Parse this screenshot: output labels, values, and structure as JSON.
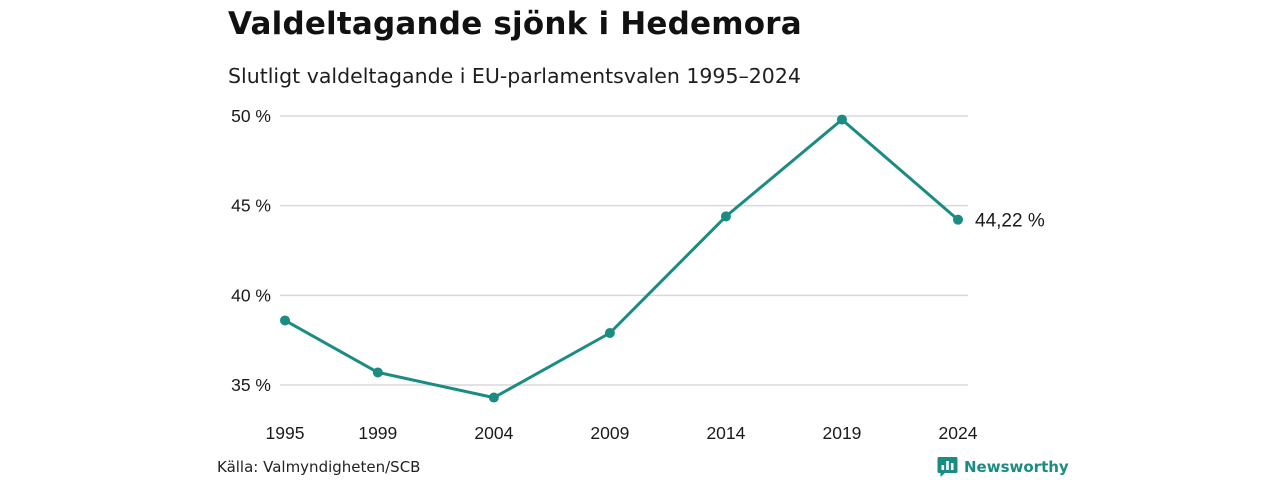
{
  "title": "Valdeltagande sjönk i Hedemora",
  "subtitle": "Slutligt valdeltagande i EU-parlamentsvalen 1995–2024",
  "source": "Källa: Valmyndigheten/SCB",
  "brand": {
    "name": "Newsworthy",
    "color": "#1a8c82",
    "icon": "newsworthy-logo-icon"
  },
  "colors": {
    "line": "#1a8c82",
    "grid": "#d9d9d9"
  },
  "chart_data": {
    "type": "line",
    "title": "Valdeltagande sjönk i Hedemora",
    "subtitle": "Slutligt valdeltagande i EU-parlamentsvalen 1995–2024",
    "xlabel": "",
    "ylabel": "",
    "x": [
      1995,
      1999,
      2004,
      2009,
      2014,
      2019,
      2024
    ],
    "x_tick_labels": [
      "1995",
      "1999",
      "2004",
      "2009",
      "2014",
      "2019",
      "2024"
    ],
    "series": [
      {
        "values": [
          38.6,
          35.7,
          34.3,
          37.9,
          44.4,
          49.8,
          44.22
        ]
      }
    ],
    "ylim": [
      35,
      50
    ],
    "y_ticks": [
      35,
      40,
      45,
      50
    ],
    "y_tick_labels": [
      "35 %",
      "40 %",
      "45 %",
      "50 %"
    ],
    "end_label": "44,22 %",
    "grid": true,
    "legend": "none"
  }
}
